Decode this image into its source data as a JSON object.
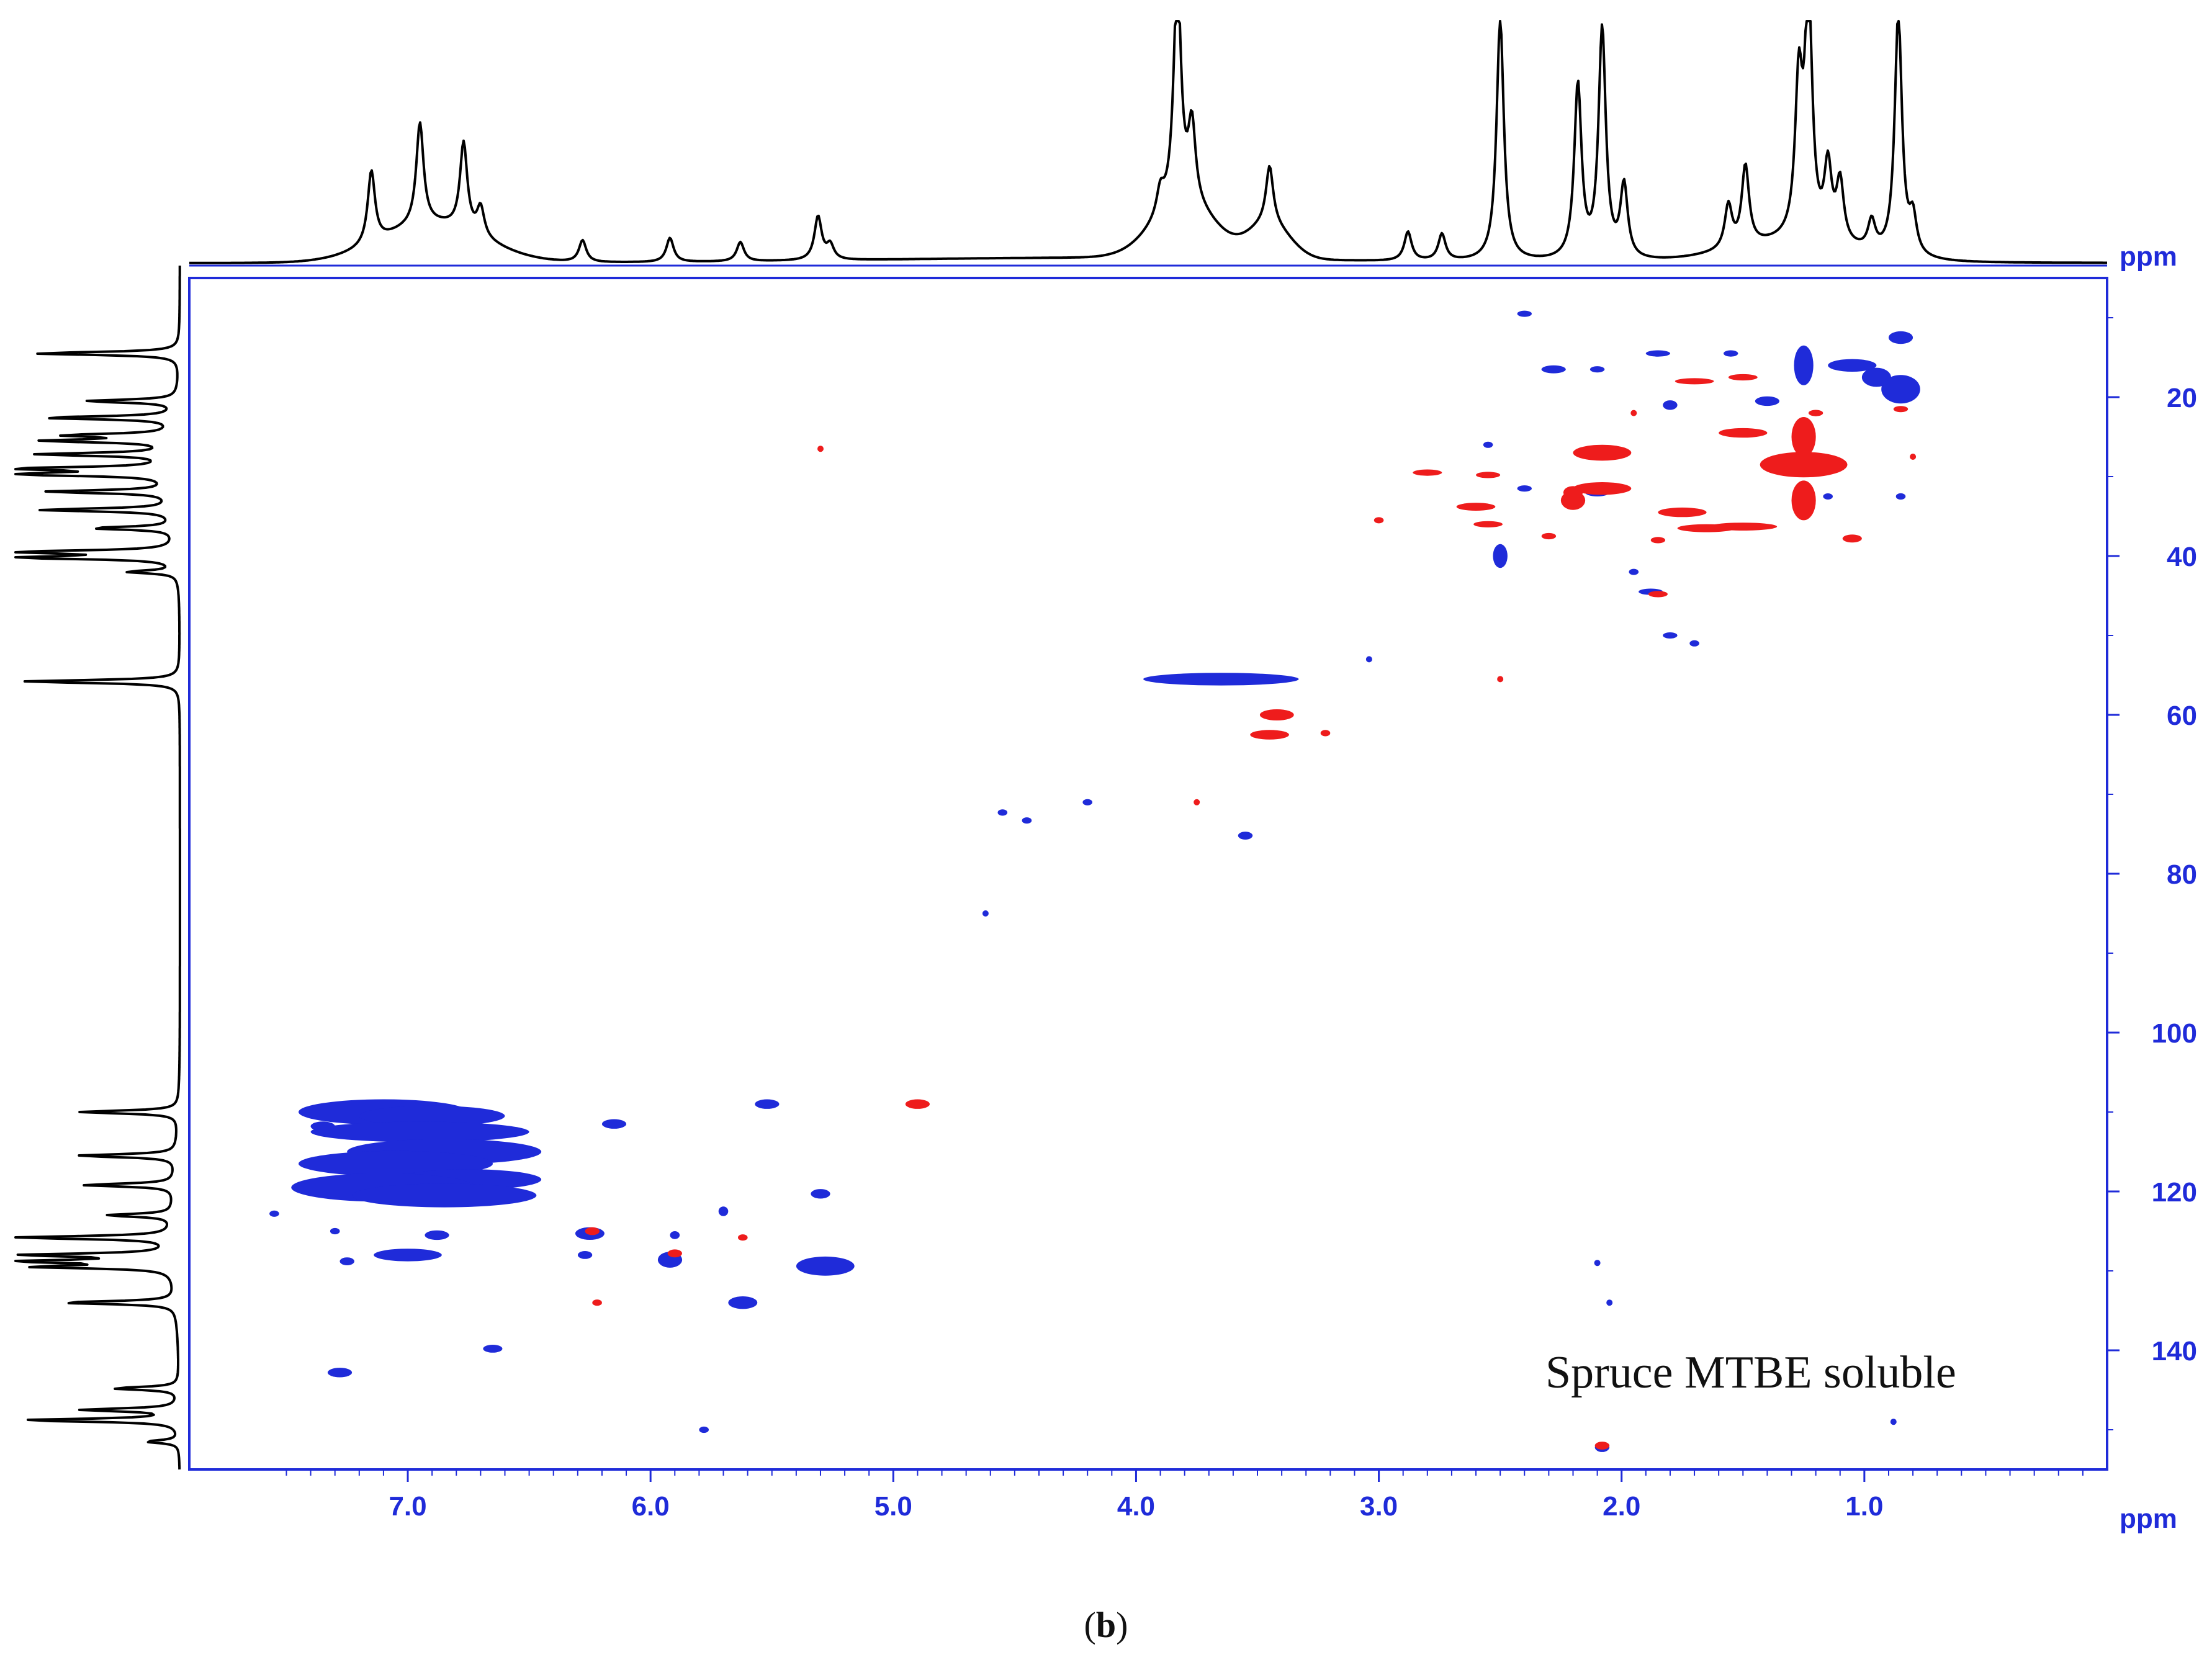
{
  "chart_data": {
    "type": "scatter",
    "title": "",
    "sample_label": "Spruce MTBE soluble",
    "caption": {
      "open": "(",
      "letter": "b",
      "close": ")"
    },
    "x_axis": {
      "unit": "ppm",
      "range": [
        7.9,
        0.0
      ],
      "ticks": [
        "7.0",
        "6.0",
        "5.0",
        "4.0",
        "3.0",
        "2.0",
        "1.0"
      ],
      "tick_values": [
        7.0,
        6.0,
        5.0,
        4.0,
        3.0,
        2.0,
        1.0
      ]
    },
    "y_axis": {
      "unit": "ppm",
      "range": [
        5,
        155
      ],
      "ticks": [
        "20",
        "40",
        "60",
        "80",
        "100",
        "120",
        "140"
      ],
      "tick_values": [
        20,
        40,
        60,
        80,
        100,
        120,
        140
      ]
    },
    "top_axis_unit": "ppm",
    "colors": {
      "positive": "#1f2bd9",
      "negative": "#ee1c1c",
      "axis": "#1f2bd9",
      "trace": "#000000"
    },
    "proton_projection_peaks": [
      {
        "ppm": 7.15,
        "height": 0.3
      },
      {
        "ppm": 6.95,
        "height": 0.42
      },
      {
        "ppm": 6.77,
        "height": 0.36
      },
      {
        "ppm": 6.7,
        "height": 0.12
      },
      {
        "ppm": 6.28,
        "height": 0.09
      },
      {
        "ppm": 5.92,
        "height": 0.1
      },
      {
        "ppm": 5.63,
        "height": 0.08
      },
      {
        "ppm": 5.31,
        "height": 0.18
      },
      {
        "ppm": 5.26,
        "height": 0.06
      },
      {
        "ppm": 3.9,
        "height": 0.1
      },
      {
        "ppm": 3.83,
        "height": 0.95
      },
      {
        "ppm": 3.77,
        "height": 0.32
      },
      {
        "ppm": 3.45,
        "height": 0.24
      },
      {
        "ppm": 2.88,
        "height": 0.12
      },
      {
        "ppm": 2.74,
        "height": 0.11
      },
      {
        "ppm": 2.5,
        "height": 1.0
      },
      {
        "ppm": 2.18,
        "height": 0.72
      },
      {
        "ppm": 2.08,
        "height": 0.95
      },
      {
        "ppm": 1.99,
        "height": 0.3
      },
      {
        "ppm": 1.56,
        "height": 0.18
      },
      {
        "ppm": 1.49,
        "height": 0.33
      },
      {
        "ppm": 1.27,
        "height": 0.62
      },
      {
        "ppm": 1.23,
        "height": 1.0
      },
      {
        "ppm": 1.15,
        "height": 0.3
      },
      {
        "ppm": 1.1,
        "height": 0.25
      },
      {
        "ppm": 0.97,
        "height": 0.12
      },
      {
        "ppm": 0.86,
        "height": 1.0
      },
      {
        "ppm": 0.8,
        "height": 0.15
      }
    ],
    "carbon_projection_peaks": [
      {
        "ppm": 14.5,
        "height": 0.88
      },
      {
        "ppm": 20.5,
        "height": 0.55
      },
      {
        "ppm": 22.6,
        "height": 0.8
      },
      {
        "ppm": 24.8,
        "height": 0.62
      },
      {
        "ppm": 25.5,
        "height": 0.75
      },
      {
        "ppm": 27.2,
        "height": 0.8
      },
      {
        "ppm": 29.0,
        "height": 0.92
      },
      {
        "ppm": 29.7,
        "height": 1.0
      },
      {
        "ppm": 31.9,
        "height": 0.75
      },
      {
        "ppm": 34.2,
        "height": 0.8
      },
      {
        "ppm": 36.5,
        "height": 0.5
      },
      {
        "ppm": 39.5,
        "height": 1.0
      },
      {
        "ppm": 40.2,
        "height": 0.95
      },
      {
        "ppm": 42.0,
        "height": 0.3
      },
      {
        "ppm": 55.8,
        "height": 0.95
      },
      {
        "ppm": 110.0,
        "height": 0.6
      },
      {
        "ppm": 115.5,
        "height": 0.6
      },
      {
        "ppm": 119.2,
        "height": 0.55
      },
      {
        "ppm": 123.0,
        "height": 0.4
      },
      {
        "ppm": 125.8,
        "height": 0.95
      },
      {
        "ppm": 128.0,
        "height": 0.88
      },
      {
        "ppm": 128.8,
        "height": 0.88
      },
      {
        "ppm": 129.5,
        "height": 0.8
      },
      {
        "ppm": 134.0,
        "height": 0.7
      },
      {
        "ppm": 144.8,
        "height": 0.4
      },
      {
        "ppm": 147.5,
        "height": 0.58
      },
      {
        "ppm": 148.8,
        "height": 0.95
      },
      {
        "ppm": 151.5,
        "height": 0.2
      }
    ],
    "cross_peaks_positive": [
      {
        "h": 7.1,
        "c": 110.0,
        "dh": 0.35,
        "dc": 1.6
      },
      {
        "h": 6.9,
        "c": 110.5,
        "dh": 0.3,
        "dc": 1.3
      },
      {
        "h": 6.95,
        "c": 112.5,
        "dh": 0.45,
        "dc": 1.3
      },
      {
        "h": 6.85,
        "c": 115.0,
        "dh": 0.4,
        "dc": 1.6
      },
      {
        "h": 7.05,
        "c": 116.5,
        "dh": 0.4,
        "dc": 1.6
      },
      {
        "h": 6.75,
        "c": 118.5,
        "dh": 0.3,
        "dc": 1.3
      },
      {
        "h": 7.1,
        "c": 119.5,
        "dh": 0.38,
        "dc": 1.8
      },
      {
        "h": 6.85,
        "c": 120.5,
        "dh": 0.38,
        "dc": 1.5
      },
      {
        "h": 7.35,
        "c": 111.8,
        "dh": 0.05,
        "dc": 0.6
      },
      {
        "h": 6.15,
        "c": 111.5,
        "dh": 0.05,
        "dc": 0.6
      },
      {
        "h": 5.52,
        "c": 109.0,
        "dh": 0.05,
        "dc": 0.6
      },
      {
        "h": 7.0,
        "c": 128.0,
        "dh": 0.14,
        "dc": 0.8
      },
      {
        "h": 6.88,
        "c": 125.5,
        "dh": 0.05,
        "dc": 0.6
      },
      {
        "h": 6.25,
        "c": 125.3,
        "dh": 0.06,
        "dc": 0.8
      },
      {
        "h": 6.27,
        "c": 128.0,
        "dh": 0.03,
        "dc": 0.5
      },
      {
        "h": 5.92,
        "c": 128.6,
        "dh": 0.05,
        "dc": 1.0
      },
      {
        "h": 5.9,
        "c": 125.5,
        "dh": 0.02,
        "dc": 0.5
      },
      {
        "h": 5.7,
        "c": 122.5,
        "dh": 0.02,
        "dc": 0.6
      },
      {
        "h": 5.62,
        "c": 134.0,
        "dh": 0.06,
        "dc": 0.8
      },
      {
        "h": 5.28,
        "c": 129.4,
        "dh": 0.12,
        "dc": 1.2
      },
      {
        "h": 5.3,
        "c": 120.3,
        "dh": 0.04,
        "dc": 0.6
      },
      {
        "h": 6.65,
        "c": 139.8,
        "dh": 0.04,
        "dc": 0.5
      },
      {
        "h": 7.28,
        "c": 142.8,
        "dh": 0.05,
        "dc": 0.6
      },
      {
        "h": 7.55,
        "c": 122.8,
        "dh": 0.02,
        "dc": 0.4
      },
      {
        "h": 7.25,
        "c": 128.8,
        "dh": 0.03,
        "dc": 0.5
      },
      {
        "h": 7.3,
        "c": 125.0,
        "dh": 0.02,
        "dc": 0.4
      },
      {
        "h": 5.78,
        "c": 150.0,
        "dh": 0.02,
        "dc": 0.4
      },
      {
        "h": 3.65,
        "c": 55.5,
        "dh": 0.32,
        "dc": 0.8
      },
      {
        "h": 3.04,
        "c": 53.0,
        "dh": 0.01,
        "dc": 0.3
      },
      {
        "h": 4.55,
        "c": 72.3,
        "dh": 0.02,
        "dc": 0.4
      },
      {
        "h": 4.45,
        "c": 73.3,
        "dh": 0.02,
        "dc": 0.4
      },
      {
        "h": 4.2,
        "c": 71.0,
        "dh": 0.02,
        "dc": 0.4
      },
      {
        "h": 3.55,
        "c": 75.2,
        "dh": 0.03,
        "dc": 0.5
      },
      {
        "h": 4.62,
        "c": 85.0,
        "dh": 0.01,
        "dc": 0.3
      },
      {
        "h": 2.5,
        "c": 40.0,
        "dh": 0.03,
        "dc": 1.5
      },
      {
        "h": 2.28,
        "c": 16.5,
        "dh": 0.05,
        "dc": 0.5
      },
      {
        "h": 2.4,
        "c": 9.5,
        "dh": 0.03,
        "dc": 0.3
      },
      {
        "h": 2.1,
        "c": 16.5,
        "dh": 0.03,
        "dc": 0.4
      },
      {
        "h": 1.85,
        "c": 14.5,
        "dh": 0.05,
        "dc": 0.4
      },
      {
        "h": 1.55,
        "c": 14.5,
        "dh": 0.03,
        "dc": 0.4
      },
      {
        "h": 1.25,
        "c": 16.0,
        "dh": 0.04,
        "dc": 2.5
      },
      {
        "h": 1.05,
        "c": 16.0,
        "dh": 0.1,
        "dc": 0.8
      },
      {
        "h": 0.85,
        "c": 12.5,
        "dh": 0.05,
        "dc": 0.8
      },
      {
        "h": 0.85,
        "c": 19.0,
        "dh": 0.08,
        "dc": 1.8
      },
      {
        "h": 0.95,
        "c": 17.5,
        "dh": 0.06,
        "dc": 1.2
      },
      {
        "h": 1.4,
        "c": 20.5,
        "dh": 0.05,
        "dc": 0.6
      },
      {
        "h": 1.8,
        "c": 21.0,
        "dh": 0.03,
        "dc": 0.6
      },
      {
        "h": 2.1,
        "c": 32.0,
        "dh": 0.05,
        "dc": 0.5
      },
      {
        "h": 2.4,
        "c": 31.5,
        "dh": 0.03,
        "dc": 0.4
      },
      {
        "h": 2.55,
        "c": 26.0,
        "dh": 0.02,
        "dc": 0.3
      },
      {
        "h": 1.95,
        "c": 42.0,
        "dh": 0.02,
        "dc": 0.3
      },
      {
        "h": 1.88,
        "c": 44.5,
        "dh": 0.05,
        "dc": 0.4
      },
      {
        "h": 1.8,
        "c": 50.0,
        "dh": 0.03,
        "dc": 0.3
      },
      {
        "h": 1.7,
        "c": 51.0,
        "dh": 0.02,
        "dc": 0.3
      },
      {
        "h": 0.85,
        "c": 32.5,
        "dh": 0.02,
        "dc": 0.4
      },
      {
        "h": 1.15,
        "c": 32.5,
        "dh": 0.02,
        "dc": 0.3
      },
      {
        "h": 2.1,
        "c": 129.0,
        "dh": 0.01,
        "dc": 0.3
      },
      {
        "h": 2.05,
        "c": 134.0,
        "dh": 0.01,
        "dc": 0.3
      },
      {
        "h": 0.88,
        "c": 149.0,
        "dh": 0.01,
        "dc": 0.3
      },
      {
        "h": 2.08,
        "c": 152.2,
        "dh": 0.03,
        "dc": 0.6
      }
    ],
    "cross_peaks_negative": [
      {
        "h": 5.3,
        "c": 26.5,
        "dh": 0.01,
        "dc": 0.3
      },
      {
        "h": 4.9,
        "c": 109.0,
        "dh": 0.05,
        "dc": 0.6
      },
      {
        "h": 5.62,
        "c": 125.8,
        "dh": 0.02,
        "dc": 0.4
      },
      {
        "h": 6.24,
        "c": 125.0,
        "dh": 0.03,
        "dc": 0.5
      },
      {
        "h": 5.9,
        "c": 127.8,
        "dh": 0.03,
        "dc": 0.5
      },
      {
        "h": 6.22,
        "c": 134.0,
        "dh": 0.02,
        "dc": 0.4
      },
      {
        "h": 3.42,
        "c": 60.0,
        "dh": 0.07,
        "dc": 0.7
      },
      {
        "h": 3.45,
        "c": 62.5,
        "dh": 0.08,
        "dc": 0.6
      },
      {
        "h": 3.22,
        "c": 62.3,
        "dh": 0.02,
        "dc": 0.4
      },
      {
        "h": 3.75,
        "c": 71.0,
        "dh": 0.01,
        "dc": 0.3
      },
      {
        "h": 2.5,
        "c": 55.5,
        "dh": 0.01,
        "dc": 0.3
      },
      {
        "h": 2.8,
        "c": 29.5,
        "dh": 0.06,
        "dc": 0.4
      },
      {
        "h": 2.55,
        "c": 29.8,
        "dh": 0.05,
        "dc": 0.4
      },
      {
        "h": 2.6,
        "c": 33.8,
        "dh": 0.08,
        "dc": 0.5
      },
      {
        "h": 2.55,
        "c": 36.0,
        "dh": 0.06,
        "dc": 0.4
      },
      {
        "h": 2.3,
        "c": 37.5,
        "dh": 0.03,
        "dc": 0.4
      },
      {
        "h": 2.2,
        "c": 33.0,
        "dh": 0.05,
        "dc": 1.2
      },
      {
        "h": 2.08,
        "c": 27.0,
        "dh": 0.12,
        "dc": 1.0
      },
      {
        "h": 2.08,
        "c": 31.5,
        "dh": 0.12,
        "dc": 0.8
      },
      {
        "h": 2.2,
        "c": 32.0,
        "dh": 0.04,
        "dc": 0.8
      },
      {
        "h": 3.0,
        "c": 35.5,
        "dh": 0.02,
        "dc": 0.3
      },
      {
        "h": 1.75,
        "c": 34.5,
        "dh": 0.1,
        "dc": 0.6
      },
      {
        "h": 1.7,
        "c": 18.0,
        "dh": 0.08,
        "dc": 0.3
      },
      {
        "h": 1.5,
        "c": 17.5,
        "dh": 0.06,
        "dc": 0.4
      },
      {
        "h": 1.5,
        "c": 24.5,
        "dh": 0.1,
        "dc": 0.6
      },
      {
        "h": 1.5,
        "c": 36.3,
        "dh": 0.14,
        "dc": 0.5
      },
      {
        "h": 1.65,
        "c": 36.5,
        "dh": 0.12,
        "dc": 0.5
      },
      {
        "h": 1.85,
        "c": 38.0,
        "dh": 0.03,
        "dc": 0.4
      },
      {
        "h": 1.25,
        "c": 28.5,
        "dh": 0.18,
        "dc": 1.6
      },
      {
        "h": 1.25,
        "c": 25.0,
        "dh": 0.05,
        "dc": 2.5
      },
      {
        "h": 1.25,
        "c": 33.0,
        "dh": 0.05,
        "dc": 2.5
      },
      {
        "h": 1.05,
        "c": 37.8,
        "dh": 0.04,
        "dc": 0.5
      },
      {
        "h": 1.85,
        "c": 44.8,
        "dh": 0.04,
        "dc": 0.4
      },
      {
        "h": 1.2,
        "c": 22.0,
        "dh": 0.03,
        "dc": 0.4
      },
      {
        "h": 0.85,
        "c": 21.5,
        "dh": 0.03,
        "dc": 0.3
      },
      {
        "h": 0.8,
        "c": 27.5,
        "dh": 0.01,
        "dc": 0.2
      },
      {
        "h": 1.95,
        "c": 22.0,
        "dh": 0.01,
        "dc": 0.3
      },
      {
        "h": 2.08,
        "c": 152.0,
        "dh": 0.03,
        "dc": 0.5
      }
    ]
  }
}
